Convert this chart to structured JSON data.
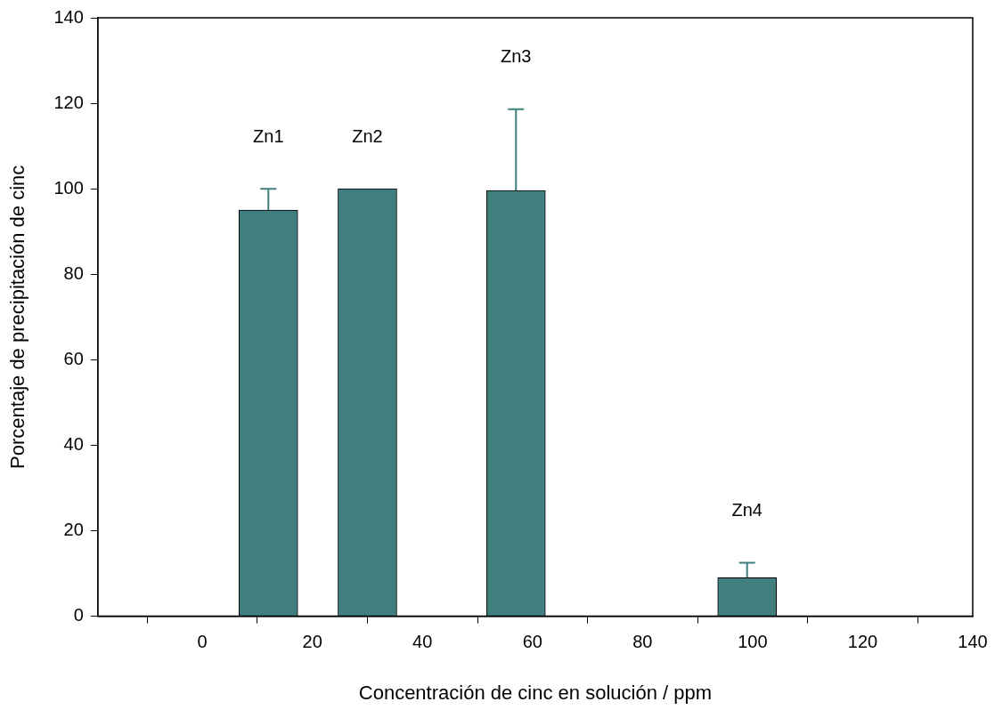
{
  "chart_data": {
    "type": "bar",
    "xlabel": "Concentración de cinc en solución / ppm",
    "ylabel": "Porcentaje de precipitación de cinc",
    "x": [
      12,
      30,
      57,
      99
    ],
    "values": [
      95,
      100,
      99.6,
      9
    ],
    "errors": [
      5,
      null,
      19,
      3.5
    ],
    "color": "#417f7e",
    "xlim": [
      -19,
      140
    ],
    "xticks": [
      0,
      20,
      40,
      60,
      80,
      100,
      120,
      140
    ],
    "ylim": [
      0,
      140
    ],
    "yticks": [
      0,
      20,
      40,
      60,
      80,
      100,
      120,
      140
    ],
    "grid": false,
    "legend": false,
    "annotations": [
      "Zn1",
      "Zn2",
      "Zn3",
      "Zn4"
    ]
  }
}
